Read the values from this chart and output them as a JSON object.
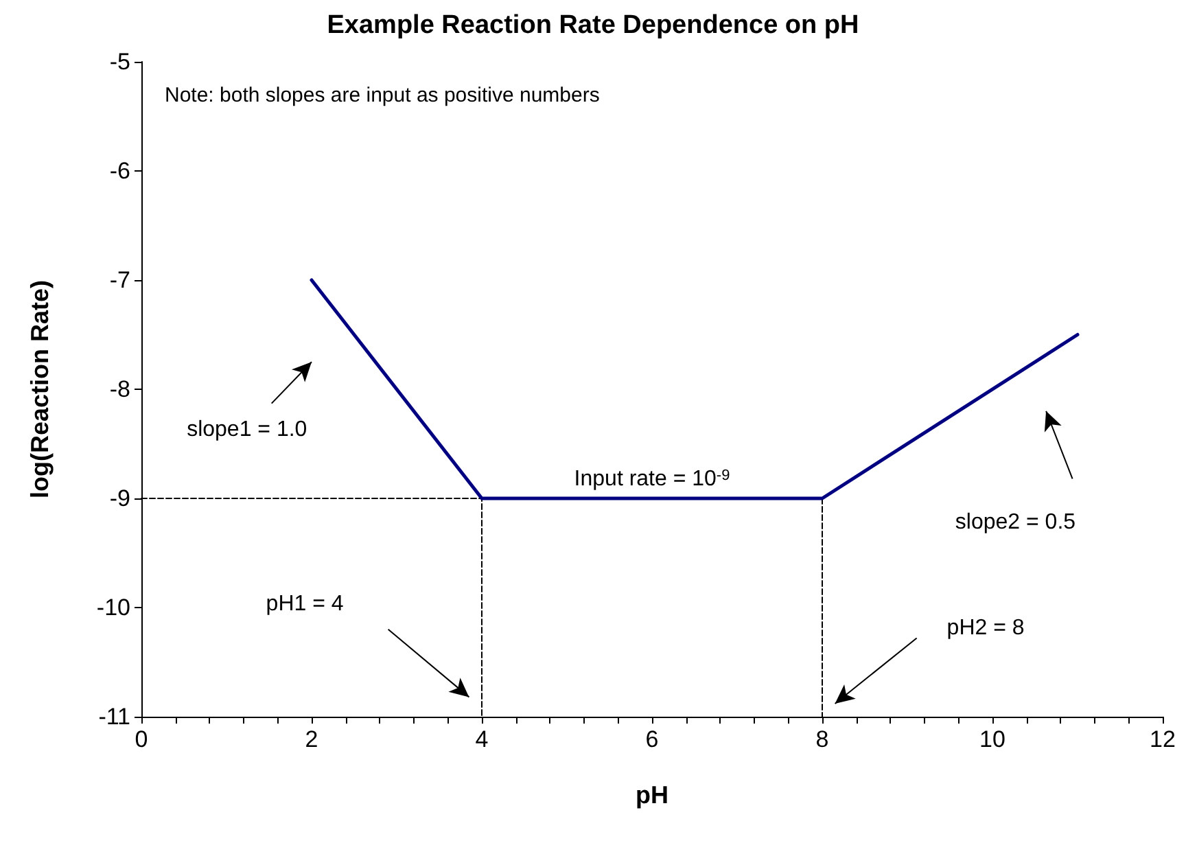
{
  "chart_data": {
    "type": "line",
    "title": "Example Reaction Rate Dependence on pH",
    "xlabel": "pH",
    "ylabel": "log(Reaction Rate)",
    "xlim": [
      0,
      12
    ],
    "xticks": [
      0,
      2,
      4,
      6,
      8,
      10,
      12
    ],
    "ylim": [
      -11,
      -5
    ],
    "yticks": [
      -11,
      -10,
      -9,
      -8,
      -7,
      -6,
      -5
    ],
    "grid": false,
    "marker": "none",
    "series": [
      {
        "color": "#000080",
        "x": [
          2,
          4,
          8,
          11
        ],
        "values": [
          -7,
          -9,
          -9,
          -7.5
        ],
        "line_style": "solid"
      },
      {
        "color": "#000000",
        "x": [
          0,
          4,
          4
        ],
        "values": [
          -9,
          -9,
          -11
        ],
        "line_style": "dashed"
      },
      {
        "color": "#000000",
        "x": [
          8,
          8
        ],
        "values": [
          -9,
          -11
        ],
        "line_style": "dashed"
      }
    ],
    "annotations": [
      "Note: both slopes are input as positive numbers",
      "slope1 = 1.0",
      {
        "text": "Input rate = 10$^{-9}$",
        "x": 6,
        "y": -9
      },
      "slope2 = 0.5",
      "pH1 = 4",
      "pH2 = 8"
    ]
  }
}
